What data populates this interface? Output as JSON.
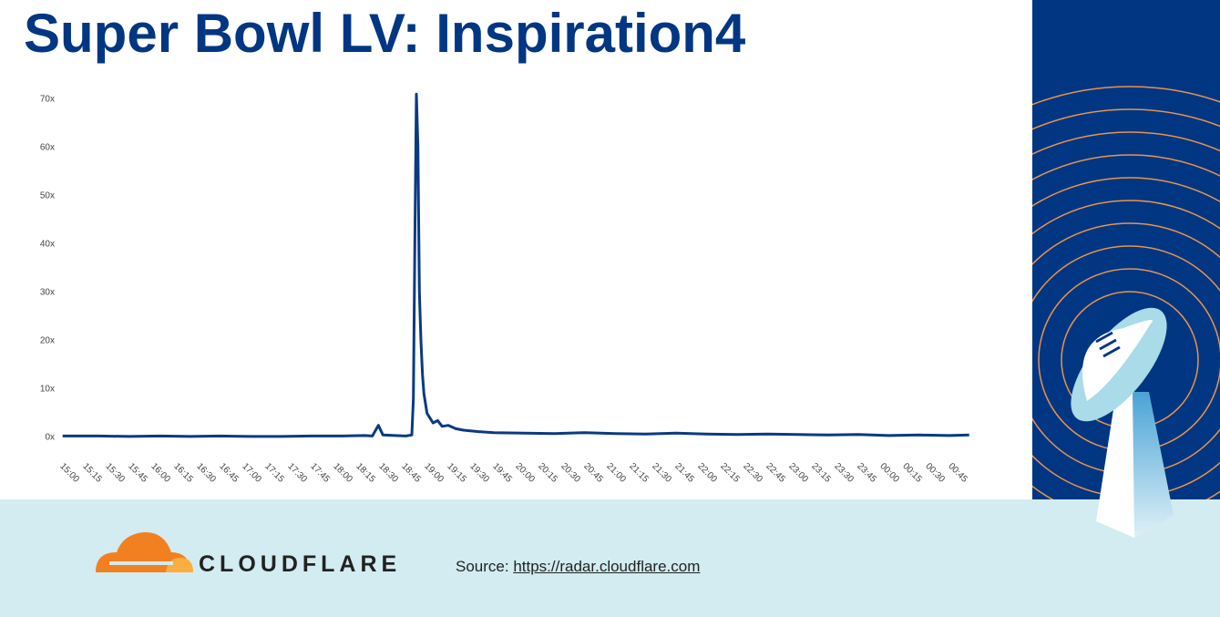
{
  "chart_data": {
    "type": "line",
    "title": "Super Bowl LV: Inspiration4",
    "color": "#0a3a82",
    "x": [
      -4,
      20,
      40,
      60,
      80,
      100,
      120,
      140,
      160,
      180,
      195,
      200,
      204,
      207,
      215,
      222,
      226,
      227,
      228,
      229,
      230,
      231,
      232,
      233,
      234,
      236,
      238,
      240,
      243,
      246,
      250,
      255,
      260,
      270,
      280,
      300,
      320,
      340,
      360,
      380,
      400,
      420,
      440,
      460,
      480,
      500,
      520,
      540,
      560,
      580,
      593
    ],
    "values": [
      0.3,
      0.3,
      0.2,
      0.3,
      0.2,
      0.3,
      0.2,
      0.2,
      0.3,
      0.3,
      0.4,
      0.3,
      2.5,
      0.5,
      0.4,
      0.3,
      0.5,
      8,
      40,
      71,
      60,
      30,
      20,
      13,
      9,
      5,
      4,
      3,
      3.5,
      2.3,
      2.5,
      1.8,
      1.5,
      1.2,
      1,
      0.9,
      0.8,
      1,
      0.8,
      0.7,
      0.9,
      0.7,
      0.6,
      0.7,
      0.6,
      0.5,
      0.6,
      0.4,
      0.5,
      0.4,
      0.5
    ],
    "xlim": [
      -5,
      595
    ],
    "ylim": [
      0,
      72
    ],
    "yticks": [
      {
        "value": 0,
        "label": "0x"
      },
      {
        "value": 10,
        "label": "10x"
      },
      {
        "value": 20,
        "label": "20x"
      },
      {
        "value": 30,
        "label": "30x"
      },
      {
        "value": 40,
        "label": "40x"
      },
      {
        "value": 50,
        "label": "50x"
      },
      {
        "value": 60,
        "label": "60x"
      },
      {
        "value": 70,
        "label": "70x"
      }
    ],
    "xticks": [
      {
        "value": 0,
        "label": "15:00"
      },
      {
        "value": 15,
        "label": "15:15"
      },
      {
        "value": 30,
        "label": "15:30"
      },
      {
        "value": 45,
        "label": "15:45"
      },
      {
        "value": 60,
        "label": "16:00"
      },
      {
        "value": 75,
        "label": "16:15"
      },
      {
        "value": 90,
        "label": "16:30"
      },
      {
        "value": 105,
        "label": "16:45"
      },
      {
        "value": 120,
        "label": "17:00"
      },
      {
        "value": 135,
        "label": "17:15"
      },
      {
        "value": 150,
        "label": "17:30"
      },
      {
        "value": 165,
        "label": "17:45"
      },
      {
        "value": 180,
        "label": "18:00"
      },
      {
        "value": 195,
        "label": "18:15"
      },
      {
        "value": 210,
        "label": "18:30"
      },
      {
        "value": 225,
        "label": "18:45"
      },
      {
        "value": 240,
        "label": "19:00"
      },
      {
        "value": 255,
        "label": "19:15"
      },
      {
        "value": 270,
        "label": "19:30"
      },
      {
        "value": 285,
        "label": "19:45"
      },
      {
        "value": 300,
        "label": "20:00"
      },
      {
        "value": 315,
        "label": "20:15"
      },
      {
        "value": 330,
        "label": "20:30"
      },
      {
        "value": 345,
        "label": "20:45"
      },
      {
        "value": 360,
        "label": "21:00"
      },
      {
        "value": 375,
        "label": "21:15"
      },
      {
        "value": 390,
        "label": "21:30"
      },
      {
        "value": 405,
        "label": "21:45"
      },
      {
        "value": 420,
        "label": "22:00"
      },
      {
        "value": 435,
        "label": "22:15"
      },
      {
        "value": 450,
        "label": "22:30"
      },
      {
        "value": 465,
        "label": "22:45"
      },
      {
        "value": 480,
        "label": "23:00"
      },
      {
        "value": 495,
        "label": "23:15"
      },
      {
        "value": 510,
        "label": "23:30"
      },
      {
        "value": 525,
        "label": "23:45"
      },
      {
        "value": 540,
        "label": "00:00"
      },
      {
        "value": 555,
        "label": "00:15"
      },
      {
        "value": 570,
        "label": "00:30"
      },
      {
        "value": 585,
        "label": "00:45"
      }
    ]
  },
  "footer": {
    "brand": "CLOUDFLARE",
    "source_label": "Source:",
    "source_url": "https://radar.cloudflare.com"
  }
}
